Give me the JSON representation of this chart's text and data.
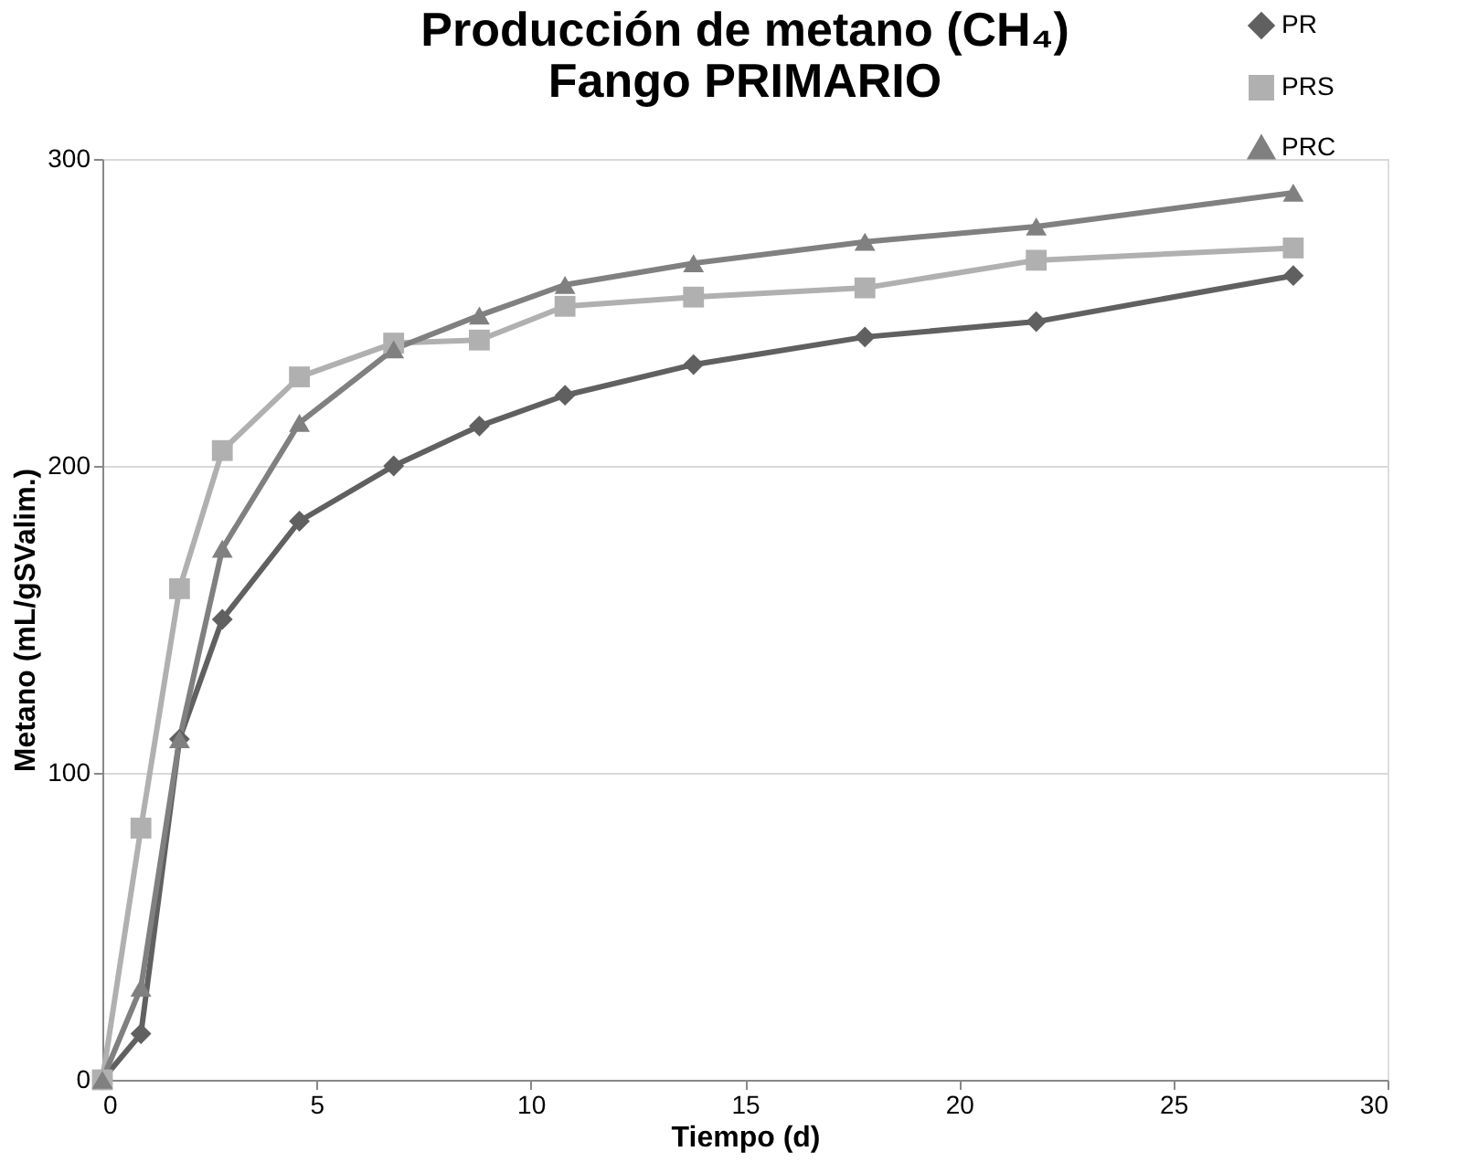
{
  "chart_data": {
    "type": "line",
    "title": "Producción de metano (CH₄)\nFango PRIMARIO",
    "xlabel": "Tiempo (d)",
    "ylabel": "Metano (mL/gSValim.)",
    "x": [
      0,
      0.9,
      1.8,
      2.8,
      4.6,
      6.8,
      8.8,
      10.8,
      13.8,
      17.8,
      21.8,
      27.8
    ],
    "series": [
      {
        "name": "PR",
        "color": "#606060",
        "marker": "diamond",
        "values": [
          0,
          15,
          111,
          150,
          182,
          200,
          213,
          223,
          233,
          242,
          247,
          262
        ]
      },
      {
        "name": "PRS",
        "color": "#b0b0b0",
        "marker": "square",
        "values": [
          0,
          82,
          160,
          205,
          229,
          240,
          241,
          252,
          255,
          258,
          267,
          271
        ]
      },
      {
        "name": "PRC",
        "color": "#808080",
        "marker": "triangle",
        "values": [
          0,
          30,
          111,
          173,
          214,
          238,
          249,
          259,
          266,
          273,
          278,
          289
        ]
      }
    ],
    "xlim": [
      0,
      30
    ],
    "xticks": [
      0,
      5,
      10,
      15,
      20,
      25,
      30
    ],
    "ylim": [
      0,
      300
    ],
    "yticks": [
      0,
      100,
      200,
      300
    ],
    "grid": "y",
    "legend": "top right",
    "line_style": "solid"
  }
}
